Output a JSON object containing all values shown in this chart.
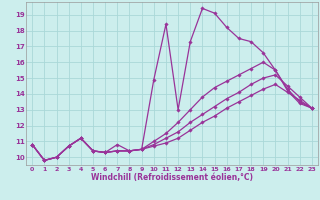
{
  "xlabel": "Windchill (Refroidissement éolien,°C)",
  "background_color": "#cceeed",
  "grid_color": "#aad8d8",
  "line_color": "#993399",
  "tick_color": "#993399",
  "xlim": [
    -0.5,
    23.5
  ],
  "ylim": [
    9.5,
    19.8
  ],
  "xticks": [
    0,
    1,
    2,
    3,
    4,
    5,
    6,
    7,
    8,
    9,
    10,
    11,
    12,
    13,
    14,
    15,
    16,
    17,
    18,
    19,
    20,
    21,
    22,
    23
  ],
  "yticks": [
    10,
    11,
    12,
    13,
    14,
    15,
    16,
    17,
    18,
    19
  ],
  "lines": [
    {
      "x": [
        0,
        1,
        2,
        3,
        4,
        5,
        6,
        7,
        8,
        9,
        10,
        11,
        12,
        13,
        14,
        15,
        16,
        17,
        18,
        19,
        20,
        21,
        22,
        23
      ],
      "y": [
        10.8,
        9.8,
        10.0,
        10.7,
        11.2,
        10.4,
        10.3,
        10.8,
        10.4,
        10.5,
        14.9,
        18.4,
        13.0,
        17.3,
        19.4,
        19.1,
        18.2,
        17.5,
        17.3,
        16.6,
        15.5,
        14.3,
        13.5,
        13.1
      ]
    },
    {
      "x": [
        0,
        1,
        2,
        3,
        4,
        5,
        6,
        7,
        8,
        9,
        10,
        11,
        12,
        13,
        14,
        15,
        16,
        17,
        18,
        19,
        20,
        21,
        22,
        23
      ],
      "y": [
        10.8,
        9.8,
        10.0,
        10.7,
        11.2,
        10.4,
        10.3,
        10.4,
        10.4,
        10.5,
        11.0,
        11.5,
        12.2,
        13.0,
        13.8,
        14.4,
        14.8,
        15.2,
        15.6,
        16.0,
        15.5,
        14.2,
        13.4,
        13.1
      ]
    },
    {
      "x": [
        0,
        1,
        2,
        3,
        4,
        5,
        6,
        7,
        8,
        9,
        10,
        11,
        12,
        13,
        14,
        15,
        16,
        17,
        18,
        19,
        20,
        21,
        22,
        23
      ],
      "y": [
        10.8,
        9.8,
        10.0,
        10.7,
        11.2,
        10.4,
        10.3,
        10.4,
        10.4,
        10.5,
        10.8,
        11.2,
        11.6,
        12.2,
        12.7,
        13.2,
        13.7,
        14.1,
        14.6,
        15.0,
        15.2,
        14.5,
        13.8,
        13.1
      ]
    },
    {
      "x": [
        0,
        1,
        2,
        3,
        4,
        5,
        6,
        7,
        8,
        9,
        10,
        11,
        12,
        13,
        14,
        15,
        16,
        17,
        18,
        19,
        20,
        21,
        22,
        23
      ],
      "y": [
        10.8,
        9.8,
        10.0,
        10.7,
        11.2,
        10.4,
        10.3,
        10.4,
        10.4,
        10.5,
        10.7,
        10.9,
        11.2,
        11.7,
        12.2,
        12.6,
        13.1,
        13.5,
        13.9,
        14.3,
        14.6,
        14.1,
        13.6,
        13.1
      ]
    }
  ]
}
